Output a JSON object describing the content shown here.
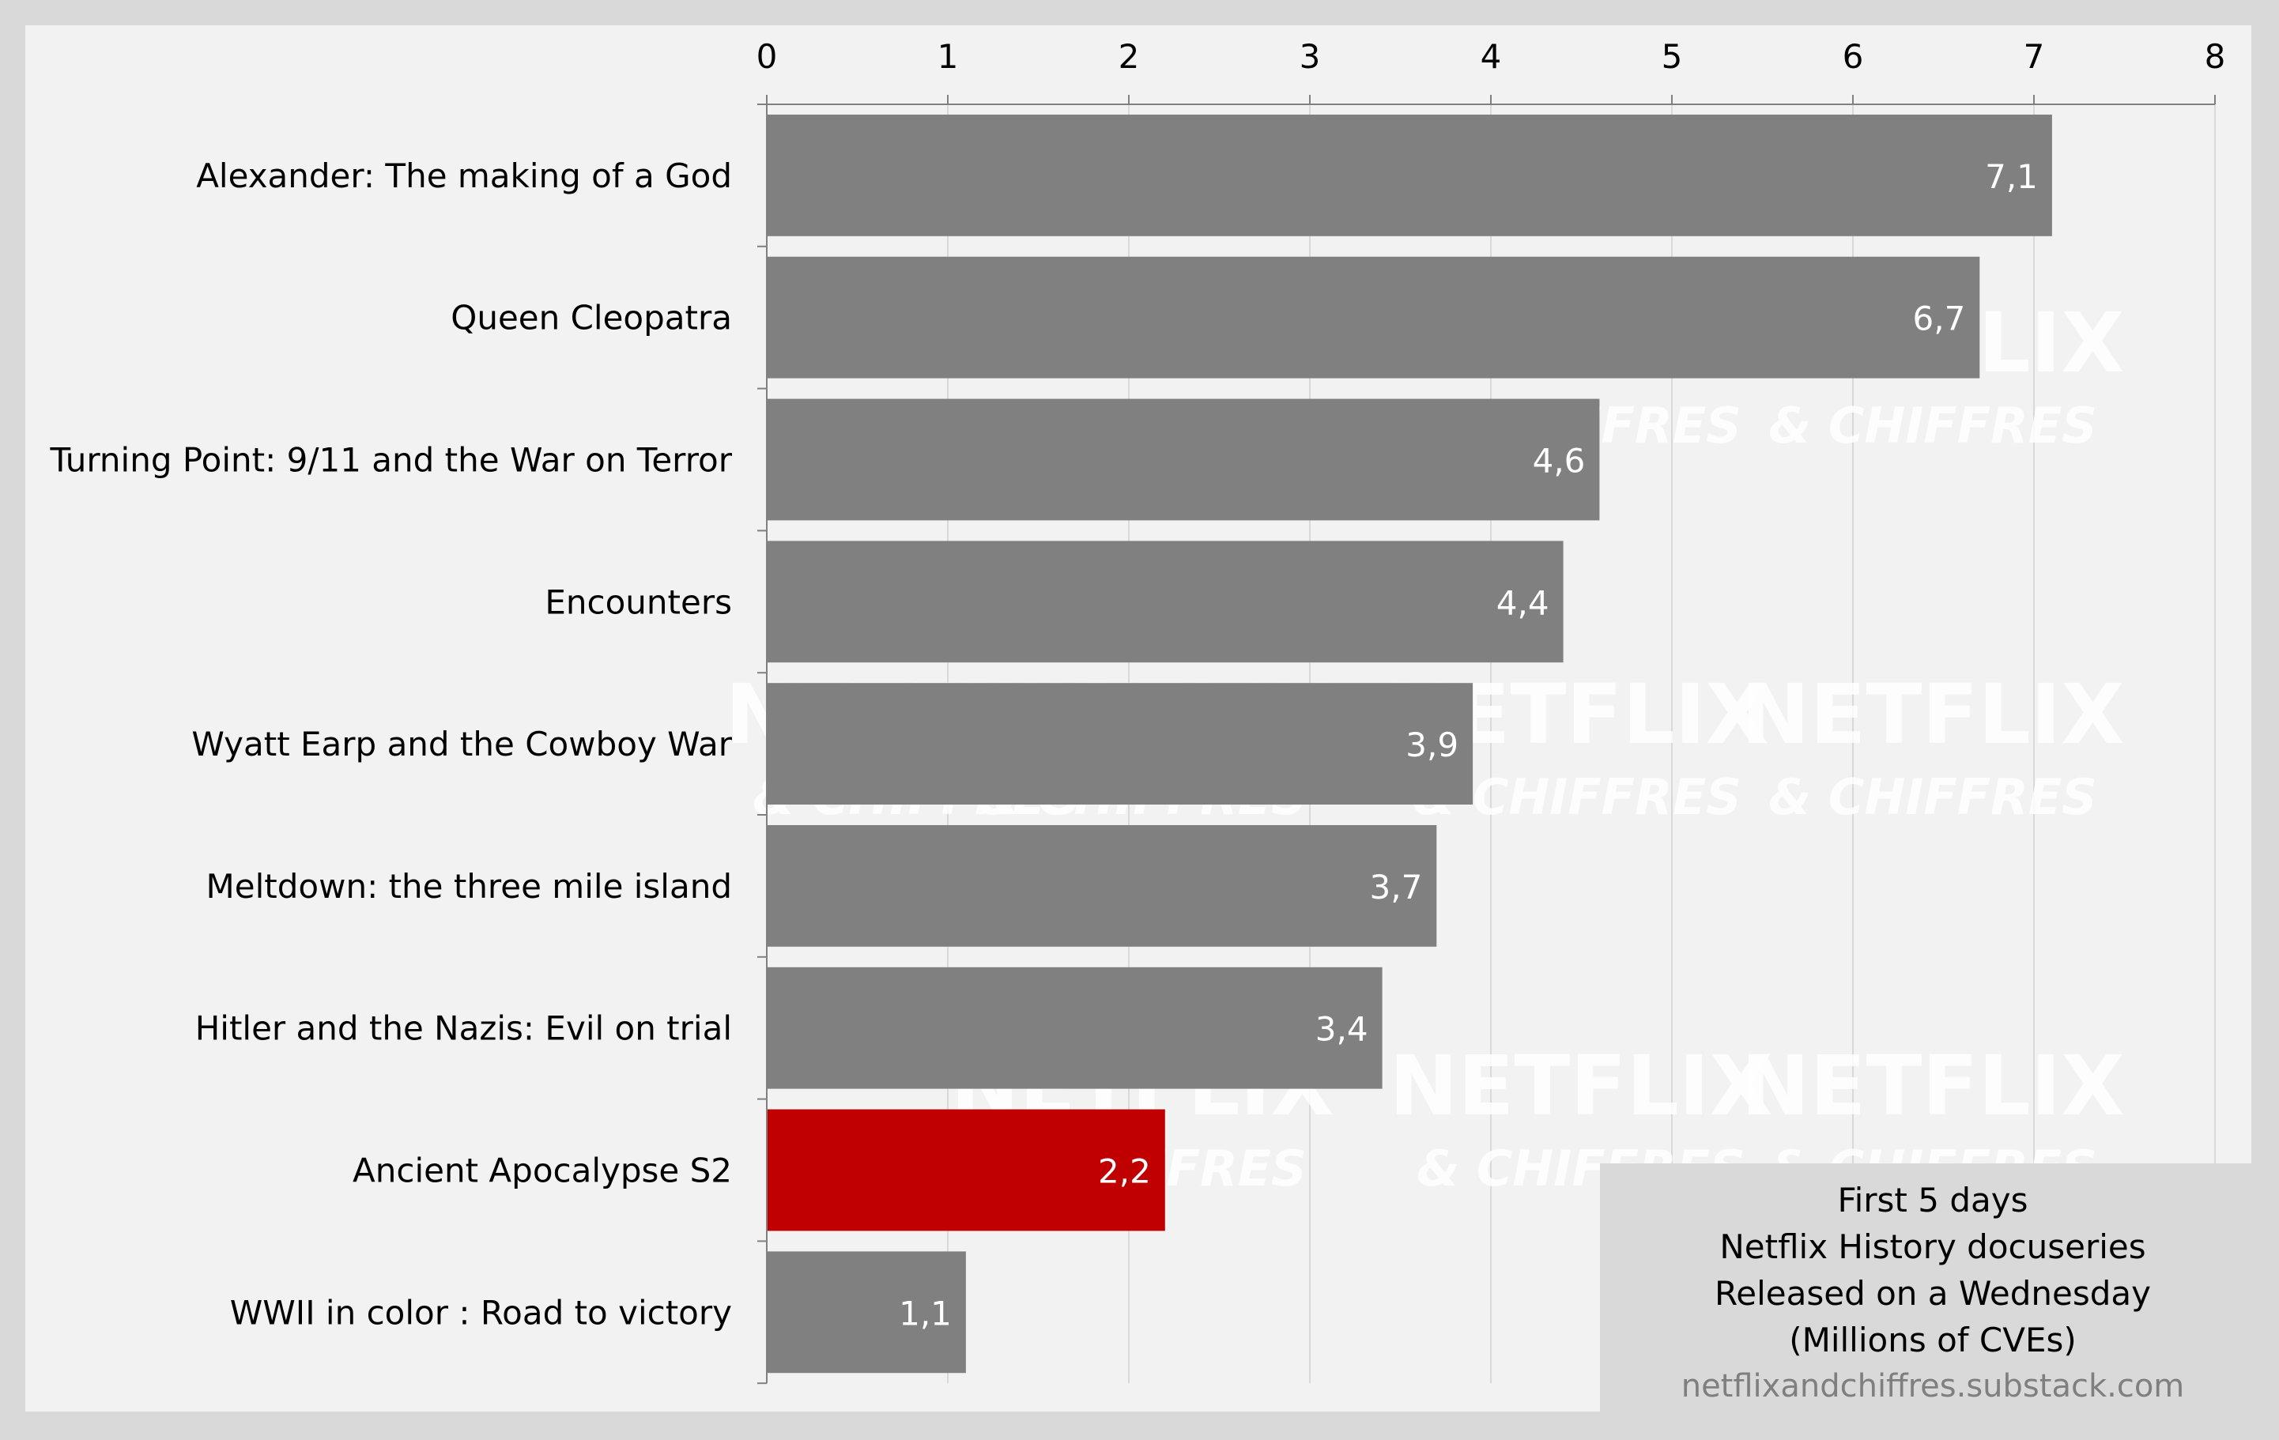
{
  "chart_data": {
    "type": "bar",
    "orientation": "horizontal",
    "categories": [
      "Alexander: The making of a God",
      "Queen Cleopatra",
      "Turning Point: 9/11 and the War on Terror",
      "Encounters",
      "Wyatt Earp and the Cowboy War",
      "Meltdown: the three mile island",
      "Hitler and the Nazis: Evil on trial",
      "Ancient Apocalypse S2",
      "WWII in color : Road to victory"
    ],
    "values": [
      7.1,
      6.7,
      4.6,
      4.4,
      3.9,
      3.7,
      3.4,
      2.2,
      1.1
    ],
    "value_labels": [
      "7,1",
      "6,7",
      "4,6",
      "4,4",
      "3,9",
      "3,7",
      "3,4",
      "2,2",
      "1,1"
    ],
    "highlight_index": 7,
    "xlim": [
      0,
      8
    ],
    "xticks": [
      "0",
      "1",
      "2",
      "3",
      "4",
      "5",
      "6",
      "7",
      "8"
    ],
    "x_axis_position": "top",
    "grid": true,
    "colors": {
      "bar": "#808080",
      "highlight": "#c00000",
      "plot_bg": "#f2f2f2",
      "outer_bg": "#d9d9d9",
      "grid": "#d9d9d9",
      "info_box": "#d9d9d9"
    }
  },
  "info_box": {
    "line1": "First 5 days",
    "line2": "Netflix History docuseries",
    "line3": "Released on a Wednesday",
    "line4": "(Millions of CVEs)",
    "url": "netflixandchiffres.substack.com"
  },
  "watermark": {
    "brand": "NETFLIX",
    "sub": "& CHIFFRES"
  }
}
